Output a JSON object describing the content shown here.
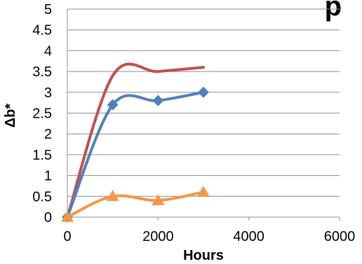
{
  "chart_data": {
    "type": "line",
    "title_fragment": "p",
    "xlabel": "Hours",
    "ylabel": "Δb*",
    "xlim": [
      0,
      6000
    ],
    "ylim": [
      0,
      5
    ],
    "x_ticks": [
      "0",
      "2000",
      "4000",
      "6000"
    ],
    "y_ticks": [
      "0",
      "0.5",
      "1",
      "1.5",
      "2",
      "2.5",
      "3",
      "3.5",
      "4",
      "4.5",
      "5"
    ],
    "grid": "horizontal",
    "series": [
      {
        "color": "#C0504D",
        "marker": "none",
        "x": [
          0,
          1000,
          2000,
          3000
        ],
        "y": [
          0,
          3.4,
          3.5,
          3.6
        ]
      },
      {
        "color": "#4F81BD",
        "marker": "diamond",
        "x": [
          0,
          1000,
          2000,
          3000
        ],
        "y": [
          0,
          2.7,
          2.8,
          3.0
        ]
      },
      {
        "color": "#F79646",
        "marker": "triangle",
        "x": [
          0,
          1000,
          2000,
          3000
        ],
        "y": [
          0,
          0.5,
          0.4,
          0.6
        ]
      }
    ]
  }
}
